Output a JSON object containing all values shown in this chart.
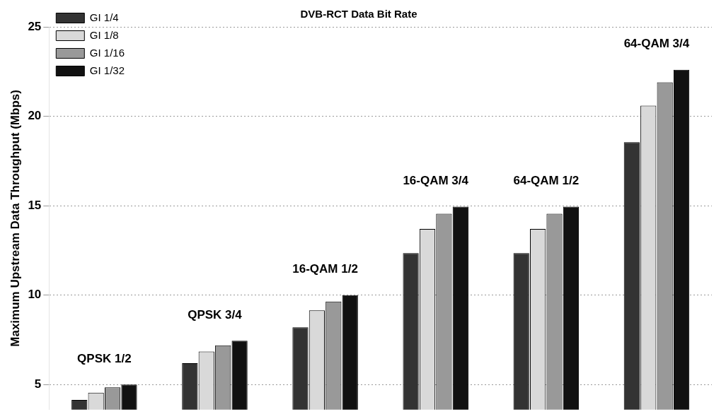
{
  "chart_data": {
    "type": "bar",
    "title": "DVB-RCT Data Bit Rate",
    "ylabel": "Maximum Upstream Data Throughput (Mbps)",
    "categories": [
      "QPSK 1/2",
      "QPSK 3/4",
      "16-QAM 1/2",
      "16-QAM 3/4",
      "64-QAM 1/2",
      "64-QAM 3/4"
    ],
    "series": [
      {
        "name": "GI 1/4",
        "color": "#333333",
        "values": [
          4.15,
          6.2,
          8.2,
          12.35,
          12.35,
          18.55
        ]
      },
      {
        "name": "GI 1/8",
        "color": "#d9d9d9",
        "values": [
          4.55,
          6.85,
          9.15,
          13.7,
          13.7,
          20.6
        ]
      },
      {
        "name": "GI 1/16",
        "color": "#999999",
        "values": [
          4.85,
          7.2,
          9.65,
          14.55,
          14.55,
          21.9
        ]
      },
      {
        "name": "GI 1/32",
        "color": "#111111",
        "values": [
          5.0,
          7.45,
          10.0,
          14.95,
          14.95,
          22.6
        ]
      }
    ],
    "ylim": [
      3.6,
      25
    ],
    "yticks": [
      5,
      10,
      15,
      20,
      25
    ],
    "grid": "y",
    "legend": "top left"
  }
}
